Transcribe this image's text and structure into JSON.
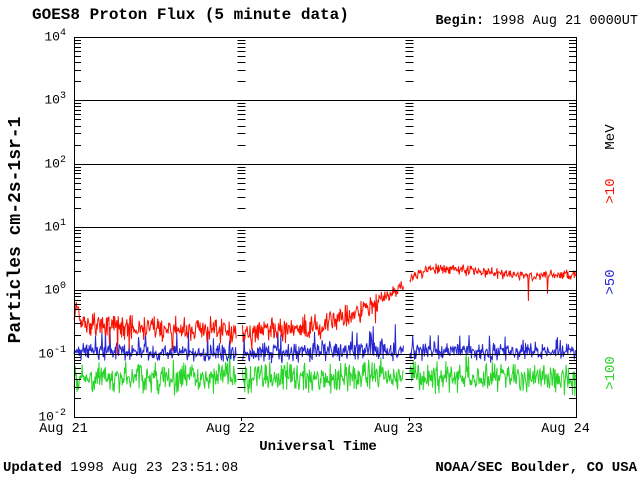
{
  "header": {
    "title": "GOES8 Proton Flux (5 minute data)",
    "begin_label": "Begin:",
    "begin_value": " 1998 Aug 21 0000UT"
  },
  "footer": {
    "updated_label": "Updated",
    "updated_value": " 1998 Aug 23 23:51:08",
    "source": "NOAA/SEC Boulder, CO USA"
  },
  "chart_data": {
    "type": "line",
    "title": "GOES8 Proton Flux (5 minute data)",
    "xlabel": "Universal Time",
    "ylabel": "Particles cm-2s-1sr-1",
    "y_axis": {
      "scale": "log",
      "min_exp": -2,
      "max_exp": 4,
      "tick_exponents": [
        4,
        3,
        2,
        1,
        0,
        -1,
        -2
      ]
    },
    "x_ticks": [
      "Aug 21",
      "Aug 22",
      "Aug 23",
      "Aug 24"
    ],
    "x_range_days": [
      0,
      3
    ],
    "cadence_minutes": 5,
    "grid": "solid horizontal line at each decade; log minor ticks on left/right edges and at day boundaries",
    "legend_position": "right edge, rotated labels",
    "unit_label": {
      "text": "MeV",
      "color": "#000000"
    },
    "seed": 77,
    "gaps_days": [
      [
        0.972,
        1.004
      ],
      [
        1.972,
        2.004
      ]
    ],
    "series": [
      {
        "name": ">10",
        "color": "#fa1000",
        "clamp_min": 0.07,
        "spike": {
          "prob": 0.02,
          "dex": 0.3,
          "dir": -1
        },
        "description": "quiet ~0.25 on Aug 21, rises from Aug 22 ~12UT, crosses 1.0 near Aug 23 00UT, plateau ~2 early Aug 23, slow decay to ~1.8",
        "trend": [
          [
            0.0,
            0.35,
            0.18
          ],
          [
            0.015,
            0.6,
            0.12
          ],
          [
            0.04,
            0.3,
            0.24
          ],
          [
            0.5,
            0.25,
            0.24
          ],
          [
            1.0,
            0.22,
            0.24
          ],
          [
            1.4,
            0.26,
            0.26
          ],
          [
            1.6,
            0.36,
            0.24
          ],
          [
            1.8,
            0.62,
            0.18
          ],
          [
            1.95,
            1.05,
            0.13
          ],
          [
            2.02,
            1.65,
            0.11
          ],
          [
            2.12,
            2.15,
            0.1
          ],
          [
            2.28,
            2.15,
            0.1
          ],
          [
            2.45,
            1.95,
            0.1
          ],
          [
            2.65,
            1.7,
            0.1
          ],
          [
            2.82,
            1.75,
            0.1
          ],
          [
            3.0,
            1.8,
            0.1
          ]
        ]
      },
      {
        "name": ">50",
        "color": "#2626d0",
        "clamp_min": 0.05,
        "spike": {
          "prob": 0.05,
          "dex": 0.25,
          "dir": 1
        },
        "description": "flat near 0.1 for all three days",
        "trend": [
          [
            0.0,
            0.11,
            0.17
          ],
          [
            0.8,
            0.1,
            0.17
          ],
          [
            1.6,
            0.11,
            0.18
          ],
          [
            2.4,
            0.105,
            0.17
          ],
          [
            3.0,
            0.105,
            0.17
          ]
        ]
      },
      {
        "name": ">100",
        "color": "#28d428",
        "clamp_min": 0.021,
        "spike": {
          "prob": 0.04,
          "dex": 0.18,
          "dir": 1
        },
        "description": "flat near 0.04 for all three days, bottoming near 0.02",
        "trend": [
          [
            0.0,
            0.042,
            0.28
          ],
          [
            1.0,
            0.04,
            0.28
          ],
          [
            2.0,
            0.043,
            0.28
          ],
          [
            3.0,
            0.041,
            0.28
          ]
        ]
      }
    ]
  }
}
